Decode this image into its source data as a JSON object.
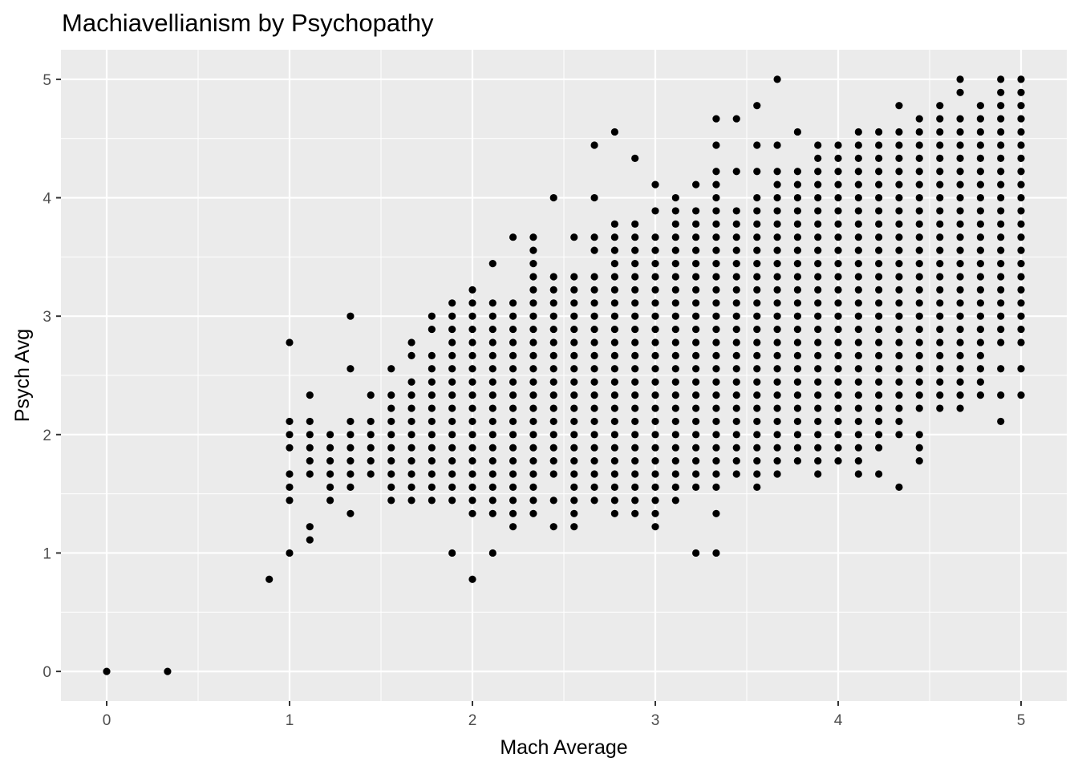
{
  "chart_data": {
    "type": "scatter",
    "title": "Machiavellianism by Psychopathy",
    "xlabel": "Mach Average",
    "ylabel": "Psych Avg",
    "xlim": [
      -0.25,
      5.25
    ],
    "ylim": [
      -0.25,
      5.25
    ],
    "x_ticks": [
      0,
      1,
      2,
      3,
      4,
      5
    ],
    "y_ticks": [
      0,
      1,
      2,
      3,
      4,
      5
    ],
    "x_tick_labels": [
      "0",
      "1",
      "2",
      "3",
      "4",
      "5"
    ],
    "y_tick_labels": [
      "0",
      "1",
      "2",
      "3",
      "4",
      "5"
    ],
    "grid": true,
    "colors": {
      "panel": "#ebebeb",
      "grid": "#ffffff",
      "point": "#000000"
    },
    "point_columns": [
      {
        "x": 0,
        "y": [
          0
        ]
      },
      {
        "x": 0.333,
        "y": [
          0
        ]
      },
      {
        "x": 0.889,
        "y": [
          0.778
        ]
      },
      {
        "x": 1,
        "y": [
          1,
          1.444,
          1.556,
          1.667,
          1.889,
          2,
          2.111,
          2.778
        ]
      },
      {
        "x": 1.111,
        "y": [
          1.111,
          1.222,
          1.667,
          1.778,
          1.889,
          2,
          2.111,
          2.333
        ]
      },
      {
        "x": 1.222,
        "y": [
          1.444,
          1.556,
          1.667,
          1.778,
          1.889,
          2
        ]
      },
      {
        "x": 1.333,
        "y": [
          1.333,
          1.556,
          1.667,
          1.778,
          1.889,
          2,
          2.111,
          2.556,
          3
        ]
      },
      {
        "x": 1.444,
        "y": [
          1.667,
          1.778,
          1.889,
          2,
          2.111,
          2.333
        ]
      },
      {
        "x": 1.556,
        "y": [
          1.444,
          1.556,
          1.667,
          1.778,
          1.889,
          2,
          2.111,
          2.222,
          2.333,
          2.556
        ]
      },
      {
        "x": 1.667,
        "y": [
          1.444,
          1.556,
          1.667,
          1.778,
          1.889,
          2,
          2.111,
          2.222,
          2.333,
          2.444,
          2.667,
          2.778
        ]
      },
      {
        "x": 1.778,
        "y": [
          1.444,
          1.556,
          1.667,
          1.778,
          1.889,
          2,
          2.111,
          2.222,
          2.333,
          2.444,
          2.556,
          2.667,
          2.889,
          3
        ]
      },
      {
        "x": 1.889,
        "y": [
          1,
          1.444,
          1.556,
          1.667,
          1.778,
          1.889,
          2,
          2.111,
          2.222,
          2.333,
          2.444,
          2.556,
          2.667,
          2.778,
          2.889,
          3,
          3.111
        ]
      },
      {
        "x": 2,
        "y": [
          0.778,
          1.333,
          1.444,
          1.556,
          1.667,
          1.778,
          1.889,
          2,
          2.111,
          2.222,
          2.333,
          2.444,
          2.556,
          2.667,
          2.778,
          2.889,
          3,
          3.111,
          3.222
        ]
      },
      {
        "x": 2.111,
        "y": [
          1,
          1.333,
          1.444,
          1.556,
          1.667,
          1.778,
          1.889,
          2,
          2.111,
          2.222,
          2.333,
          2.444,
          2.556,
          2.667,
          2.778,
          2.889,
          3,
          3.111,
          3.444
        ]
      },
      {
        "x": 2.222,
        "y": [
          1.222,
          1.333,
          1.444,
          1.556,
          1.667,
          1.778,
          1.889,
          2,
          2.111,
          2.222,
          2.333,
          2.444,
          2.556,
          2.667,
          2.778,
          2.889,
          3,
          3.111,
          3.667
        ]
      },
      {
        "x": 2.333,
        "y": [
          1.333,
          1.444,
          1.556,
          1.667,
          1.778,
          1.889,
          2,
          2.111,
          2.222,
          2.333,
          2.444,
          2.556,
          2.667,
          2.778,
          2.889,
          3,
          3.111,
          3.222,
          3.333,
          3.444,
          3.556,
          3.667
        ]
      },
      {
        "x": 2.444,
        "y": [
          1.222,
          1.444,
          1.667,
          1.778,
          1.889,
          2,
          2.111,
          2.222,
          2.333,
          2.444,
          2.556,
          2.667,
          2.778,
          2.889,
          3,
          3.111,
          3.222,
          3.333,
          4
        ]
      },
      {
        "x": 2.556,
        "y": [
          1.222,
          1.333,
          1.444,
          1.556,
          1.667,
          1.778,
          1.889,
          2,
          2.111,
          2.222,
          2.333,
          2.444,
          2.556,
          2.667,
          2.778,
          2.889,
          3,
          3.111,
          3.222,
          3.333,
          3.667
        ]
      },
      {
        "x": 2.667,
        "y": [
          1.444,
          1.556,
          1.667,
          1.778,
          1.889,
          2,
          2.111,
          2.222,
          2.333,
          2.444,
          2.556,
          2.667,
          2.778,
          2.889,
          3,
          3.111,
          3.222,
          3.333,
          3.556,
          3.667,
          4,
          4.444
        ]
      },
      {
        "x": 2.778,
        "y": [
          1.333,
          1.444,
          1.556,
          1.667,
          1.778,
          1.889,
          2,
          2.111,
          2.222,
          2.333,
          2.444,
          2.556,
          2.667,
          2.778,
          2.889,
          3,
          3.111,
          3.222,
          3.333,
          3.444,
          3.556,
          3.667,
          3.778,
          4.556
        ]
      },
      {
        "x": 2.889,
        "y": [
          1.333,
          1.444,
          1.556,
          1.667,
          1.778,
          1.889,
          2,
          2.111,
          2.222,
          2.333,
          2.444,
          2.556,
          2.667,
          2.778,
          2.889,
          3,
          3.111,
          3.222,
          3.333,
          3.444,
          3.556,
          3.667,
          3.778,
          4.333
        ]
      },
      {
        "x": 3,
        "y": [
          1.222,
          1.333,
          1.444,
          1.556,
          1.667,
          1.778,
          1.889,
          2,
          2.111,
          2.222,
          2.333,
          2.444,
          2.556,
          2.667,
          2.778,
          2.889,
          3,
          3.111,
          3.222,
          3.333,
          3.444,
          3.556,
          3.667,
          3.889,
          4.111
        ]
      },
      {
        "x": 3.111,
        "y": [
          1.444,
          1.556,
          1.667,
          1.778,
          1.889,
          2,
          2.111,
          2.222,
          2.333,
          2.444,
          2.556,
          2.667,
          2.778,
          2.889,
          3,
          3.111,
          3.222,
          3.333,
          3.444,
          3.556,
          3.667,
          3.778,
          3.889,
          4
        ]
      },
      {
        "x": 3.222,
        "y": [
          1,
          1.556,
          1.667,
          1.778,
          1.889,
          2,
          2.111,
          2.222,
          2.333,
          2.444,
          2.556,
          2.667,
          2.778,
          2.889,
          3,
          3.111,
          3.222,
          3.333,
          3.444,
          3.556,
          3.667,
          3.778,
          3.889,
          4.111
        ]
      },
      {
        "x": 3.333,
        "y": [
          1,
          1.333,
          1.556,
          1.667,
          1.778,
          1.889,
          2,
          2.111,
          2.222,
          2.333,
          2.444,
          2.556,
          2.667,
          2.778,
          2.889,
          3,
          3.111,
          3.222,
          3.333,
          3.444,
          3.556,
          3.667,
          3.778,
          3.889,
          4,
          4.111,
          4.222,
          4.444,
          4.667
        ]
      },
      {
        "x": 3.444,
        "y": [
          1.667,
          1.778,
          1.889,
          2,
          2.111,
          2.222,
          2.333,
          2.444,
          2.556,
          2.667,
          2.778,
          2.889,
          3,
          3.111,
          3.222,
          3.333,
          3.444,
          3.556,
          3.667,
          3.778,
          3.889,
          4.222,
          4.667
        ]
      },
      {
        "x": 3.556,
        "y": [
          1.556,
          1.667,
          1.778,
          1.889,
          2,
          2.111,
          2.222,
          2.333,
          2.444,
          2.556,
          2.667,
          2.778,
          2.889,
          3,
          3.111,
          3.222,
          3.333,
          3.444,
          3.556,
          3.667,
          3.778,
          3.889,
          4,
          4.222,
          4.444,
          4.778
        ]
      },
      {
        "x": 3.667,
        "y": [
          1.667,
          1.778,
          1.889,
          2,
          2.111,
          2.222,
          2.333,
          2.444,
          2.556,
          2.667,
          2.778,
          2.889,
          3,
          3.111,
          3.222,
          3.333,
          3.444,
          3.556,
          3.667,
          3.778,
          3.889,
          4,
          4.111,
          4.222,
          4.444,
          5
        ]
      },
      {
        "x": 3.778,
        "y": [
          1.778,
          1.889,
          2,
          2.111,
          2.222,
          2.333,
          2.444,
          2.556,
          2.667,
          2.778,
          2.889,
          3,
          3.111,
          3.222,
          3.333,
          3.444,
          3.556,
          3.667,
          3.778,
          3.889,
          4,
          4.111,
          4.222,
          4.556
        ]
      },
      {
        "x": 3.889,
        "y": [
          1.667,
          1.778,
          1.889,
          2,
          2.111,
          2.222,
          2.333,
          2.444,
          2.556,
          2.667,
          2.778,
          2.889,
          3,
          3.111,
          3.222,
          3.333,
          3.444,
          3.556,
          3.667,
          3.778,
          3.889,
          4,
          4.111,
          4.222,
          4.333,
          4.444
        ]
      },
      {
        "x": 4,
        "y": [
          1.778,
          1.889,
          2,
          2.111,
          2.222,
          2.333,
          2.444,
          2.556,
          2.667,
          2.778,
          2.889,
          3,
          3.111,
          3.222,
          3.333,
          3.444,
          3.556,
          3.667,
          3.778,
          3.889,
          4,
          4.111,
          4.222,
          4.333,
          4.444
        ]
      },
      {
        "x": 4.111,
        "y": [
          1.667,
          1.778,
          1.889,
          2,
          2.111,
          2.222,
          2.333,
          2.444,
          2.556,
          2.667,
          2.778,
          2.889,
          3,
          3.111,
          3.222,
          3.333,
          3.444,
          3.556,
          3.667,
          3.778,
          3.889,
          4,
          4.111,
          4.222,
          4.333,
          4.444,
          4.556
        ]
      },
      {
        "x": 4.222,
        "y": [
          1.667,
          1.889,
          2,
          2.111,
          2.222,
          2.333,
          2.444,
          2.556,
          2.667,
          2.778,
          2.889,
          3,
          3.111,
          3.222,
          3.333,
          3.444,
          3.556,
          3.667,
          3.778,
          3.889,
          4,
          4.111,
          4.222,
          4.333,
          4.444,
          4.556
        ]
      },
      {
        "x": 4.333,
        "y": [
          1.556,
          2,
          2.111,
          2.222,
          2.333,
          2.444,
          2.556,
          2.667,
          2.778,
          2.889,
          3,
          3.111,
          3.222,
          3.333,
          3.444,
          3.556,
          3.667,
          3.778,
          3.889,
          4,
          4.111,
          4.222,
          4.333,
          4.444,
          4.556,
          4.778
        ]
      },
      {
        "x": 4.444,
        "y": [
          1.778,
          1.889,
          2,
          2.222,
          2.333,
          2.444,
          2.556,
          2.667,
          2.778,
          2.889,
          3,
          3.111,
          3.222,
          3.333,
          3.444,
          3.556,
          3.667,
          3.778,
          3.889,
          4,
          4.111,
          4.222,
          4.333,
          4.444,
          4.556,
          4.667
        ]
      },
      {
        "x": 4.556,
        "y": [
          2.222,
          2.333,
          2.444,
          2.556,
          2.667,
          2.778,
          2.889,
          3,
          3.111,
          3.222,
          3.333,
          3.444,
          3.556,
          3.667,
          3.778,
          3.889,
          4,
          4.111,
          4.222,
          4.333,
          4.444,
          4.556,
          4.667,
          4.778
        ]
      },
      {
        "x": 4.667,
        "y": [
          2.222,
          2.333,
          2.444,
          2.556,
          2.667,
          2.778,
          2.889,
          3,
          3.111,
          3.222,
          3.333,
          3.444,
          3.556,
          3.667,
          3.778,
          3.889,
          4,
          4.111,
          4.222,
          4.333,
          4.444,
          4.556,
          4.667,
          4.889,
          5
        ]
      },
      {
        "x": 4.778,
        "y": [
          2.333,
          2.444,
          2.556,
          2.667,
          2.778,
          2.889,
          3,
          3.111,
          3.222,
          3.333,
          3.444,
          3.556,
          3.667,
          3.778,
          3.889,
          4,
          4.111,
          4.222,
          4.333,
          4.444,
          4.556,
          4.667,
          4.778
        ]
      },
      {
        "x": 4.889,
        "y": [
          2.111,
          2.333,
          2.556,
          2.778,
          2.889,
          3,
          3.111,
          3.222,
          3.333,
          3.444,
          3.556,
          3.667,
          3.778,
          3.889,
          4,
          4.111,
          4.222,
          4.333,
          4.444,
          4.556,
          4.667,
          4.778,
          4.889,
          5
        ]
      },
      {
        "x": 5,
        "y": [
          2.333,
          2.556,
          2.778,
          2.889,
          3,
          3.111,
          3.222,
          3.333,
          3.444,
          3.556,
          3.667,
          3.778,
          3.889,
          4,
          4.111,
          4.222,
          4.333,
          4.444,
          4.556,
          4.667,
          4.778,
          4.889,
          5
        ]
      }
    ]
  }
}
